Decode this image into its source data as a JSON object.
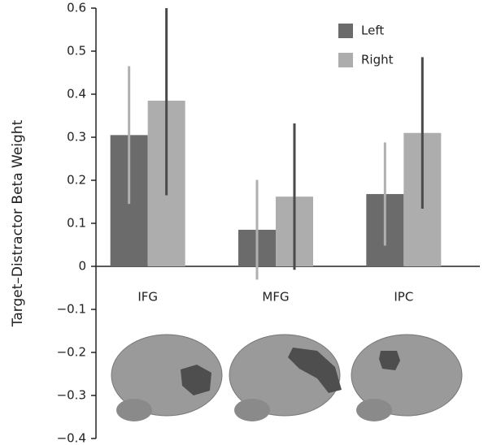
{
  "chart_data": {
    "type": "bar",
    "y_label": "Target–Distractor Beta Weight",
    "categories": [
      "IFG",
      "MFG",
      "IPC"
    ],
    "series": [
      {
        "name": "Left",
        "color": "#6b6b6b",
        "error_color": "#b0b0b0",
        "values": [
          0.305,
          0.085,
          0.168
        ],
        "errors": [
          0.16,
          0.116,
          0.12
        ]
      },
      {
        "name": "Right",
        "color": "#adadad",
        "error_color": "#4a4a4a",
        "values": [
          0.385,
          0.162,
          0.31
        ],
        "errors": [
          0.22,
          0.17,
          0.176
        ]
      }
    ],
    "ylim": [
      -0.4,
      0.6
    ],
    "yticks": [
      {
        "value": -0.4,
        "label": "−0.4"
      },
      {
        "value": -0.3,
        "label": "−0.3"
      },
      {
        "value": -0.2,
        "label": "−0.2"
      },
      {
        "value": -0.1,
        "label": "−0.1"
      },
      0,
      0.1,
      0.2,
      0.3,
      0.4,
      0.5,
      0.6
    ],
    "legend": "top-right"
  }
}
